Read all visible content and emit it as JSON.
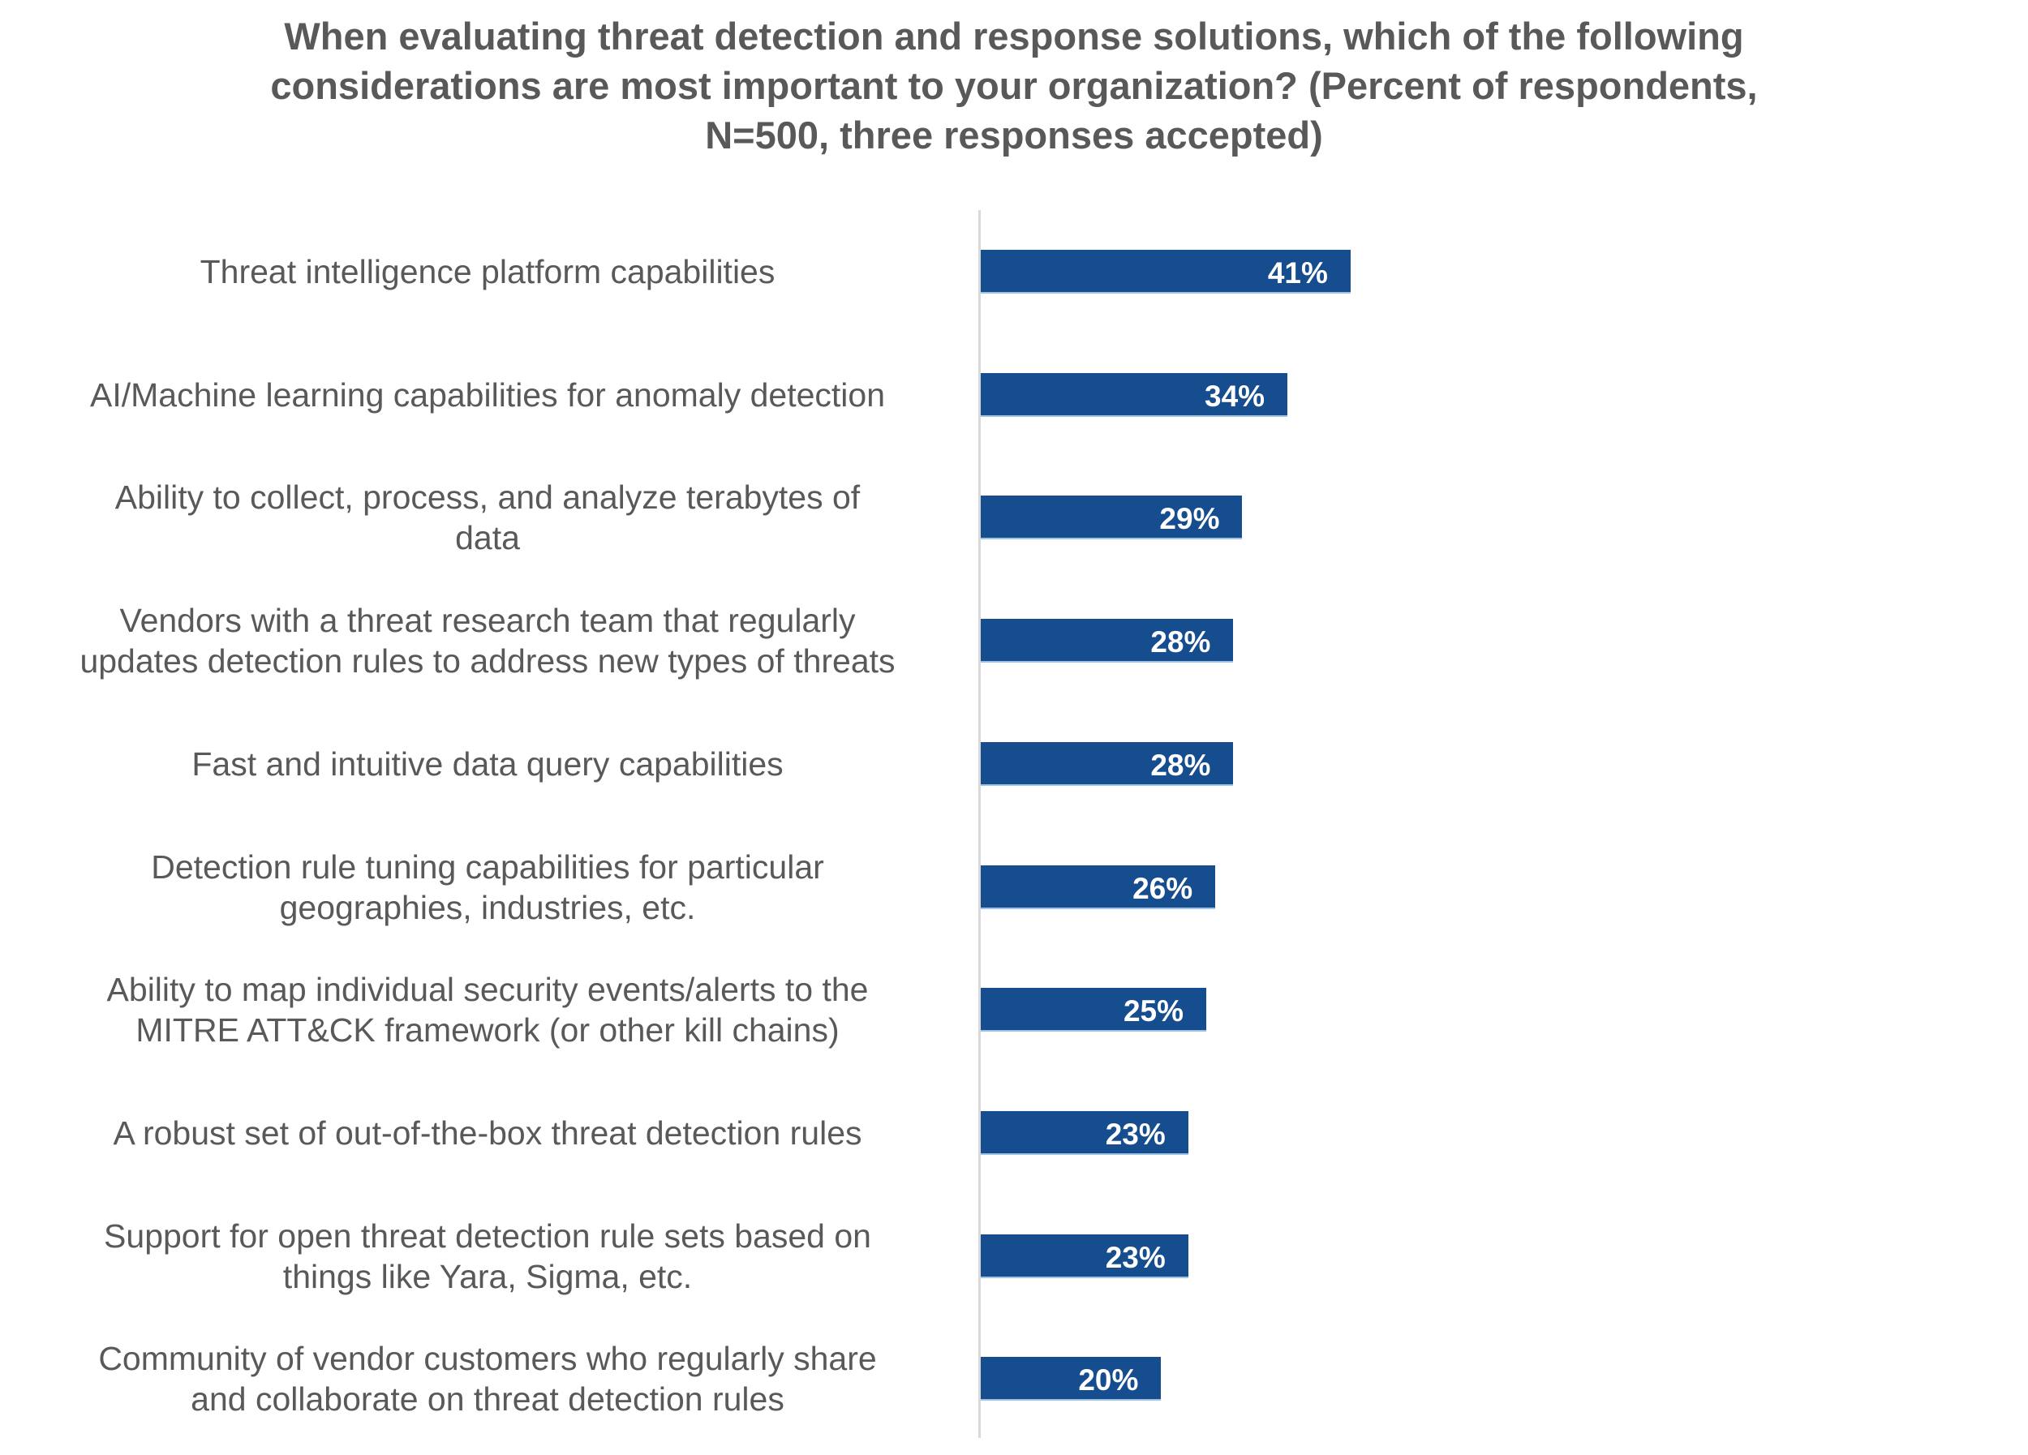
{
  "chart_data": {
    "type": "bar",
    "orientation": "horizontal",
    "title": "When evaluating threat detection and response solutions, which of the following considerations are most important to your organization? (Percent of respondents, N=500, three responses accepted)",
    "title_lines": [
      "When evaluating threat detection and response solutions, which of the following",
      "considerations are most important to your organization? (Percent of respondents,",
      "N=500, three responses accepted)"
    ],
    "categories": [
      "Threat intelligence platform capabilities",
      "AI/Machine learning capabilities for anomaly detection",
      "Ability to collect, process, and analyze terabytes of data",
      "Vendors with a threat research team that regularly updates detection rules to address new types of threats",
      "Fast and intuitive data query capabilities",
      "Detection rule tuning capabilities for particular geographies, industries, etc.",
      "Ability to map individual security events/alerts to the MITRE ATT&CK framework (or other kill chains)",
      "A robust set of out-of-the-box threat detection rules",
      "Support for open threat detection rule sets based on things like Yara, Sigma, etc.",
      "Community of vendor customers who regularly share and collaborate on threat detection rules"
    ],
    "category_lines": [
      [
        "Threat intelligence platform capabilities"
      ],
      [
        "AI/Machine learning capabilities for anomaly detection"
      ],
      [
        "Ability to collect, process, and analyze terabytes of",
        "data"
      ],
      [
        "Vendors with a threat research team that regularly",
        "updates detection rules to address new types of threats"
      ],
      [
        "Fast and intuitive data query capabilities"
      ],
      [
        "Detection rule tuning capabilities for particular",
        "geographies, industries, etc."
      ],
      [
        "Ability to map individual security events/alerts to the",
        "MITRE ATT&CK framework (or other kill chains)"
      ],
      [
        "A robust set of out-of-the-box threat detection rules"
      ],
      [
        "Support for open threat detection rule sets based on",
        "things like Yara, Sigma, etc."
      ],
      [
        "Community of vendor customers who regularly share",
        "and collaborate on threat detection rules"
      ]
    ],
    "values": [
      41,
      34,
      29,
      28,
      28,
      26,
      25,
      23,
      23,
      20
    ],
    "value_labels": [
      "41%",
      "34%",
      "29%",
      "28%",
      "28%",
      "26%",
      "25%",
      "23%",
      "23%",
      "20%"
    ],
    "unit": "%",
    "xlabel": "",
    "ylabel": "",
    "xlim": [
      0,
      41
    ],
    "grid": false,
    "legend": "none",
    "colors": {
      "bar": "#154d8f",
      "bar_label": "#ffffff",
      "text": "#595959",
      "axis": "#d9d9d9"
    }
  }
}
